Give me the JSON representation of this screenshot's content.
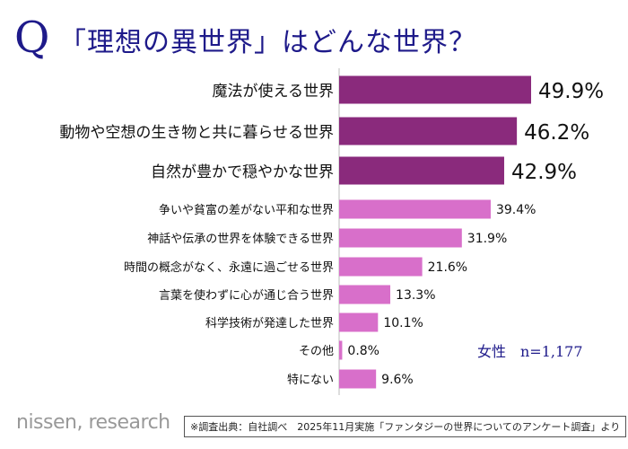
{
  "header": {
    "q_mark": "Q",
    "title": "「理想の異世界」はどんな世界？"
  },
  "chart_data": {
    "type": "bar",
    "orientation": "horizontal",
    "xlim": [
      0,
      50
    ],
    "unit": "%",
    "categories": [
      "魔法が使える世界",
      "動物や空想の生き物と共に暮らせる世界",
      "自然が豊かで穏やかな世界",
      "争いや貧富の差がない平和な世界",
      "神話や伝承の世界を体験できる世界",
      "時間の概念がなく、永遠に過ごせる世界",
      "言葉を使わずに心が通じ合う世界",
      "科学技術が発達した世界",
      "その他",
      "特にない"
    ],
    "values": [
      49.9,
      46.2,
      42.9,
      39.4,
      31.9,
      21.6,
      13.3,
      10.1,
      0.8,
      9.6
    ],
    "labels": [
      "49.9%",
      "46.2%",
      "42.9%",
      "39.4%",
      "31.9%",
      "21.6%",
      "13.3%",
      "10.1%",
      "0.8%",
      "9.6%"
    ],
    "colors": {
      "top3": "#8a2a7c",
      "others": "#d86fca"
    }
  },
  "note": "女性　n=1,177",
  "footer": {
    "brand": "nissen, research",
    "source": "※調査出典：自社調べ　2025年11月実施「ファンタジーの世界についてのアンケート調査」より"
  }
}
